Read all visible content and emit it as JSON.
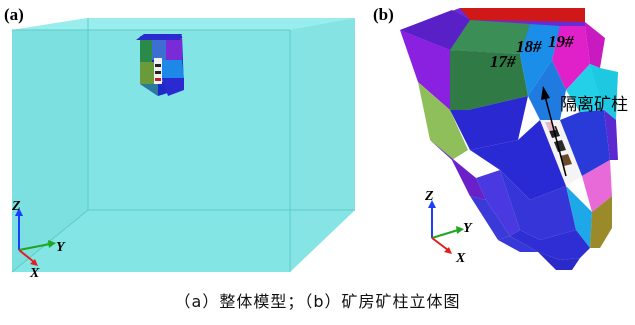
{
  "panel_a": {
    "label": "(a)",
    "axes": {
      "z": "Z",
      "y": "Y",
      "x": "X"
    }
  },
  "panel_b": {
    "label": "(b)",
    "pillar_labels": [
      "17#",
      "18#",
      "19#"
    ],
    "annotation": "隔离矿柱",
    "axes": {
      "z": "Z",
      "y": "Y",
      "x": "X"
    }
  },
  "caption": "（a）整体模型；（b）矿房矿柱立体图",
  "colors": {
    "box_cyan": "#7fe3e3",
    "box_edge": "#5ccdcd",
    "axis_z": "#1a3cff",
    "axis_y": "#1fa51f",
    "axis_x": "#e02020"
  }
}
